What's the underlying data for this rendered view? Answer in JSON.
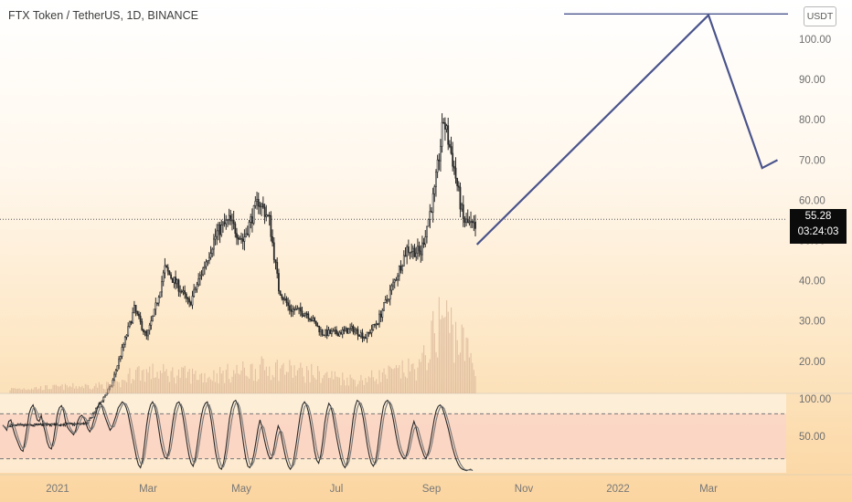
{
  "header": {
    "title": "FTX Token / TetherUS, 1D, BINANCE",
    "currency_button": "USDT"
  },
  "price_tag": {
    "price": "55.28",
    "countdown": "03:24:03"
  },
  "colors": {
    "candle": "#2a2a2a",
    "projection": "#4a548c",
    "volume": "#d9b79a",
    "stoch_k": "#2a2a2a",
    "stoch_d": "#777777",
    "stoch_band": "#f9c5b8"
  },
  "chart_data": [
    {
      "type": "candlestick",
      "title": "FTX Token / TetherUS, 1D, BINANCE",
      "x_tick_labels": [
        "2021",
        "Mar",
        "May",
        "Jul",
        "Sep",
        "Nov",
        "2022",
        "Mar"
      ],
      "y_tick_labels": [
        "100.00",
        "90.00",
        "80.00",
        "70.00",
        "60.00",
        "50.00",
        "40.00",
        "30.00",
        "20.00"
      ],
      "ylim": [
        10,
        107
      ],
      "last_price": 55.28,
      "price_path": [
        {
          "x": "2020-12-01",
          "y": 4
        },
        {
          "x": "2021-01-20",
          "y": 4.5
        },
        {
          "x": "2021-02-05",
          "y": 14
        },
        {
          "x": "2021-02-20",
          "y": 33
        },
        {
          "x": "2021-02-28",
          "y": 26
        },
        {
          "x": "2021-03-05",
          "y": 32
        },
        {
          "x": "2021-03-12",
          "y": 43
        },
        {
          "x": "2021-03-22",
          "y": 38
        },
        {
          "x": "2021-03-28",
          "y": 34
        },
        {
          "x": "2021-04-05",
          "y": 42
        },
        {
          "x": "2021-04-15",
          "y": 52
        },
        {
          "x": "2021-04-23",
          "y": 55
        },
        {
          "x": "2021-05-02",
          "y": 50
        },
        {
          "x": "2021-05-12",
          "y": 60
        },
        {
          "x": "2021-05-19",
          "y": 55
        },
        {
          "x": "2021-05-25",
          "y": 38
        },
        {
          "x": "2021-06-01",
          "y": 33
        },
        {
          "x": "2021-06-12",
          "y": 32
        },
        {
          "x": "2021-06-22",
          "y": 27
        },
        {
          "x": "2021-07-01",
          "y": 27
        },
        {
          "x": "2021-07-12",
          "y": 28
        },
        {
          "x": "2021-07-20",
          "y": 26
        },
        {
          "x": "2021-07-28",
          "y": 30
        },
        {
          "x": "2021-08-08",
          "y": 40
        },
        {
          "x": "2021-08-16",
          "y": 48
        },
        {
          "x": "2021-08-25",
          "y": 47
        },
        {
          "x": "2021-09-03",
          "y": 62
        },
        {
          "x": "2021-09-09",
          "y": 80
        },
        {
          "x": "2021-09-15",
          "y": 70
        },
        {
          "x": "2021-09-22",
          "y": 55
        },
        {
          "x": "2021-09-30",
          "y": 53
        }
      ],
      "volume_profile": [
        {
          "x": "2020-12-01",
          "y": 0.05
        },
        {
          "x": "2021-02-10",
          "y": 0.1
        },
        {
          "x": "2021-02-20",
          "y": 0.25
        },
        {
          "x": "2021-04-10",
          "y": 0.2
        },
        {
          "x": "2021-05-20",
          "y": 0.3
        },
        {
          "x": "2021-07-15",
          "y": 0.15
        },
        {
          "x": "2021-08-25",
          "y": 0.3
        },
        {
          "x": "2021-09-08",
          "y": 0.9
        },
        {
          "x": "2021-09-30",
          "y": 0.35
        }
      ],
      "projection": [
        {
          "x": "2021-10-01",
          "y": 49
        },
        {
          "x": "2022-03-01",
          "y": 106
        },
        {
          "x": "2022-04-05",
          "y": 68
        },
        {
          "x": "2022-04-15",
          "y": 70
        }
      ],
      "resistance_level": 106.5
    },
    {
      "type": "line",
      "y_tick_labels": [
        "100.00",
        "50.00"
      ],
      "ylim": [
        0,
        100
      ],
      "bands": [
        20,
        80
      ],
      "series": [
        {
          "id": "k",
          "values": [
            65,
            62,
            58,
            70,
            72,
            61,
            52,
            45,
            38,
            32,
            30,
            45,
            62,
            80,
            88,
            92,
            83,
            72,
            70,
            78,
            66,
            55,
            42,
            35,
            33,
            44,
            62,
            80,
            88,
            91,
            84,
            70,
            62,
            58,
            55,
            52,
            58,
            70,
            76,
            78,
            75,
            68,
            60,
            56,
            62,
            72,
            80,
            90,
            95,
            90,
            80,
            72,
            65,
            58,
            62,
            70,
            78,
            88,
            92,
            96,
            94,
            88,
            78,
            64,
            50,
            36,
            22,
            12,
            8,
            18,
            40,
            64,
            82,
            92,
            96,
            90,
            78,
            60,
            42,
            30,
            22,
            20,
            30,
            50,
            70,
            86,
            94,
            96,
            90,
            76,
            58,
            40,
            24,
            14,
            10,
            20,
            38,
            58,
            76,
            88,
            94,
            96,
            86,
            70,
            50,
            30,
            16,
            8,
            6,
            14,
            30,
            52,
            74,
            88,
            96,
            98,
            92,
            78,
            58,
            38,
            20,
            10,
            8,
            14,
            26,
            42,
            60,
            72,
            62,
            48,
            36,
            26,
            20,
            22,
            36,
            52,
            64,
            58,
            44,
            30,
            18,
            10,
            6,
            10,
            24,
            42,
            62,
            80,
            92,
            96,
            92,
            82,
            66,
            48,
            30,
            18,
            14,
            24,
            44,
            68,
            84,
            94,
            90,
            78,
            62,
            46,
            32,
            20,
            12,
            8,
            14,
            30,
            52,
            74,
            90,
            98,
            96,
            88,
            74,
            56,
            38,
            24,
            14,
            10,
            16,
            32,
            54,
            74,
            90,
            96,
            98,
            94,
            84,
            70,
            54,
            40,
            30,
            24,
            20,
            22,
            32,
            46,
            60,
            70,
            62,
            50,
            40,
            32,
            24,
            20,
            28,
            40,
            56,
            72,
            84,
            90,
            92,
            88,
            80,
            70,
            60,
            48,
            36,
            26,
            18,
            12,
            8,
            6,
            5,
            4,
            5,
            6,
            4
          ]
        },
        {
          "id": "d",
          "values": [
            64,
            63,
            60,
            63,
            67,
            68,
            62,
            53,
            45,
            38,
            33,
            36,
            46,
            62,
            77,
            87,
            88,
            82,
            75,
            73,
            71,
            66,
            54,
            44,
            37,
            37,
            46,
            62,
            77,
            86,
            88,
            82,
            72,
            63,
            58,
            55,
            55,
            60,
            68,
            75,
            76,
            74,
            68,
            61,
            59,
            63,
            71,
            81,
            88,
            92,
            88,
            81,
            72,
            65,
            62,
            63,
            70,
            79,
            86,
            92,
            94,
            93,
            87,
            77,
            64,
            50,
            36,
            23,
            14,
            13,
            22,
            41,
            62,
            79,
            90,
            93,
            88,
            76,
            60,
            44,
            31,
            24,
            24,
            33,
            50,
            69,
            83,
            92,
            93,
            87,
            75,
            58,
            41,
            26,
            16,
            15,
            23,
            39,
            57,
            74,
            86,
            93,
            92,
            84,
            69,
            50,
            32,
            18,
            10,
            9,
            17,
            32,
            52,
            71,
            86,
            94,
            95,
            89,
            76,
            58,
            39,
            23,
            13,
            11,
            16,
            27,
            43,
            58,
            65,
            61,
            49,
            37,
            27,
            23,
            26,
            37,
            51,
            58,
            55,
            44,
            31,
            19,
            11,
            9,
            13,
            25,
            43,
            61,
            78,
            89,
            93,
            90,
            80,
            65,
            48,
            32,
            21,
            19,
            27,
            45,
            65,
            82,
            89,
            87,
            77,
            62,
            47,
            33,
            21,
            13,
            11,
            17,
            32,
            52,
            72,
            87,
            95,
            94,
            86,
            73,
            56,
            39,
            26,
            16,
            13,
            19,
            34,
            53,
            73,
            87,
            95,
            96,
            92,
            83,
            69,
            55,
            41,
            31,
            25,
            22,
            25,
            33,
            46,
            59,
            64,
            61,
            51,
            41,
            32,
            25,
            24,
            30,
            41,
            56,
            71,
            82,
            89,
            90,
            87,
            79,
            70,
            59,
            48,
            37,
            27,
            19,
            13,
            9,
            6,
            5,
            5,
            5,
            5
          ]
        }
      ]
    }
  ]
}
